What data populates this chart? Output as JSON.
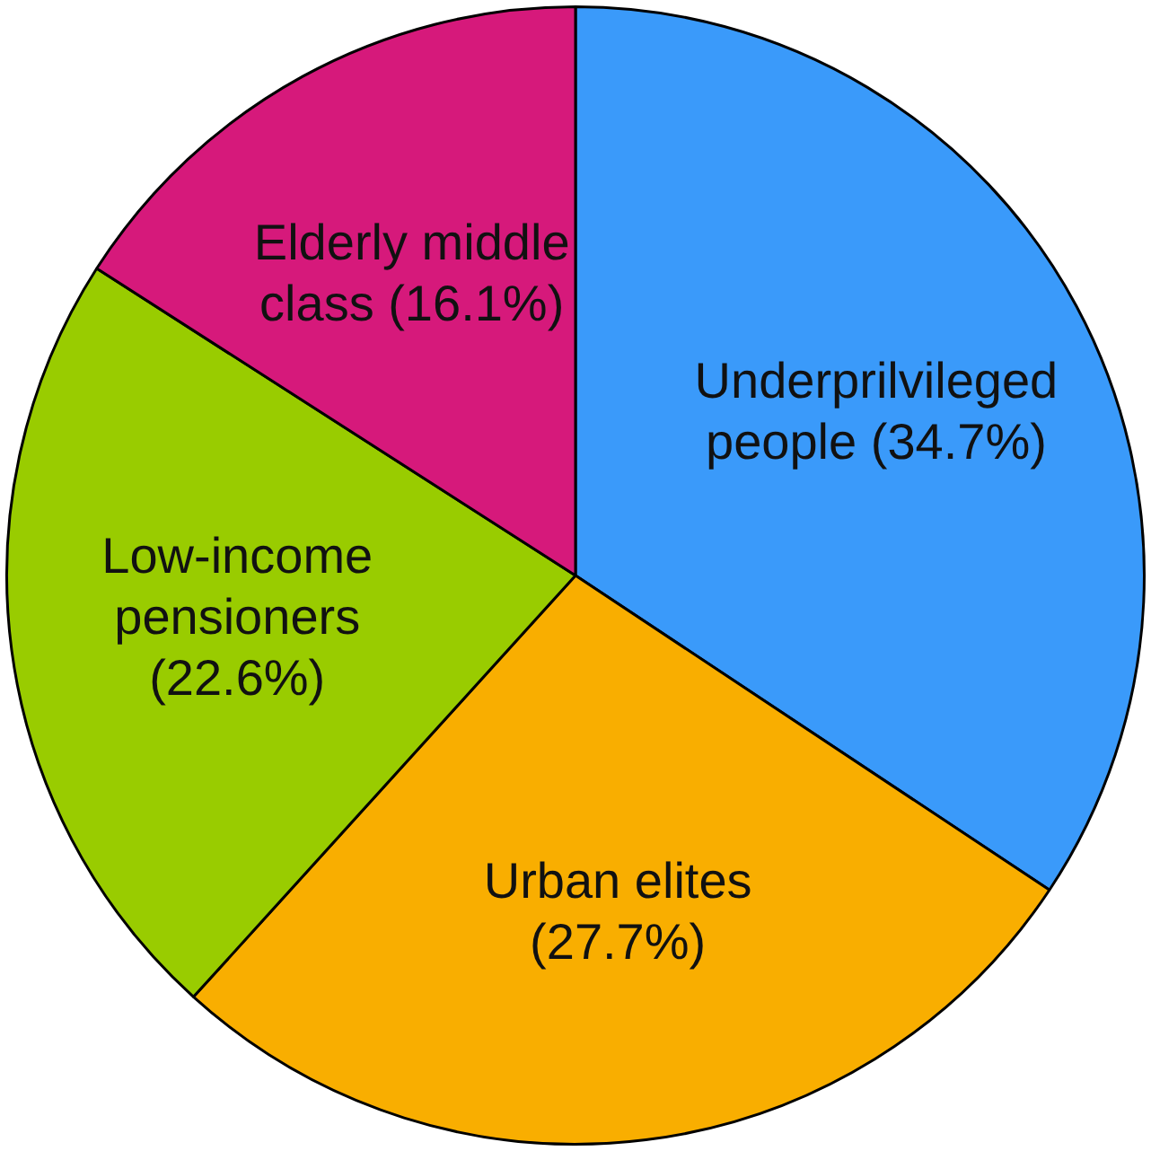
{
  "chart_data": {
    "type": "pie",
    "categories": [
      "Underprilvileged people",
      "Urban elites",
      "Low-income pensioners",
      "Elderly middle class"
    ],
    "values": [
      34.7,
      27.7,
      22.6,
      16.1
    ],
    "value_labels": [
      "(34.7%)",
      "(27.7%)",
      "(22.6%)",
      "(16.1%)"
    ],
    "colors": [
      "#3a9afa",
      "#f9ae00",
      "#99cc00",
      "#d6197b"
    ],
    "legend": false
  }
}
